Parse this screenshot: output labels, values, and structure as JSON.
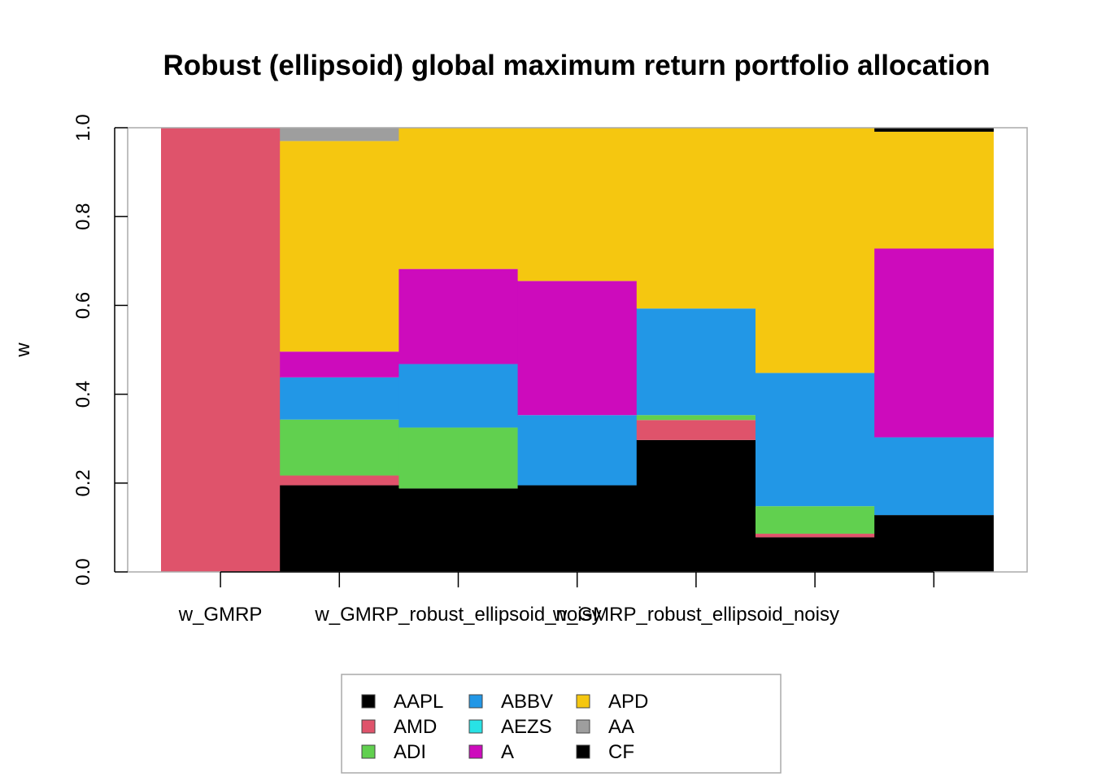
{
  "chart_data": {
    "type": "bar",
    "stacked": true,
    "title": "Robust (ellipsoid) global maximum return portfolio allocation",
    "xlabel": "",
    "ylabel": "w",
    "ylim": [
      0,
      1
    ],
    "yticks": [
      "0.0",
      "0.2",
      "0.4",
      "0.6",
      "0.8",
      "1.0"
    ],
    "categories": [
      "w_GMRP",
      "w_GMRP_robust_ellipsoid_noisy",
      "w_GMRP_robust_ellipsoid_noisy",
      "w_GMRP_robust_ellipsoid_noisy",
      "w_GMRP_robust_ellipsoid_noisy",
      "w_GMRP_robust_ellipsoid_noisy",
      "w_GMRP_robust_ellipsoid_noisy"
    ],
    "xtick_labels_shown": [
      "w_GMRP",
      "",
      "w_GMRP_robust_ellipsoid_noisy",
      "",
      "w_GMRP_robust_ellipsoid_noisy",
      "",
      ""
    ],
    "grid": false,
    "legend_position": "bottom",
    "series": [
      {
        "name": "AAPL",
        "color": "#000000",
        "values": [
          0,
          0.195,
          0.188,
          0.195,
          0.297,
          0.078,
          0.128
        ]
      },
      {
        "name": "AMD",
        "color": "#DF536B",
        "values": [
          1.0,
          0.022,
          0,
          0,
          0.045,
          0.008,
          0
        ]
      },
      {
        "name": "ADI",
        "color": "#61D04F",
        "values": [
          0,
          0.126,
          0.137,
          0,
          0.011,
          0.062,
          0
        ]
      },
      {
        "name": "ABBV",
        "color": "#2297E6",
        "values": [
          0,
          0.095,
          0.143,
          0.158,
          0.24,
          0.3,
          0.175
        ]
      },
      {
        "name": "AEZS",
        "color": "#28E2E5",
        "values": [
          0,
          0,
          0,
          0,
          0,
          0,
          0
        ]
      },
      {
        "name": "A",
        "color": "#CD0BBC",
        "values": [
          0,
          0.058,
          0.214,
          0.302,
          0,
          0,
          0.425
        ]
      },
      {
        "name": "APD",
        "color": "#F5C710",
        "values": [
          0,
          0.474,
          0.318,
          0.345,
          0.407,
          0.552,
          0.263
        ]
      },
      {
        "name": "AA",
        "color": "#9E9E9E",
        "values": [
          0,
          0.03,
          0,
          0,
          0,
          0,
          0
        ]
      },
      {
        "name": "CF",
        "color": "#000000",
        "values": [
          0,
          0,
          0,
          0,
          0,
          0,
          0.009
        ]
      }
    ]
  }
}
